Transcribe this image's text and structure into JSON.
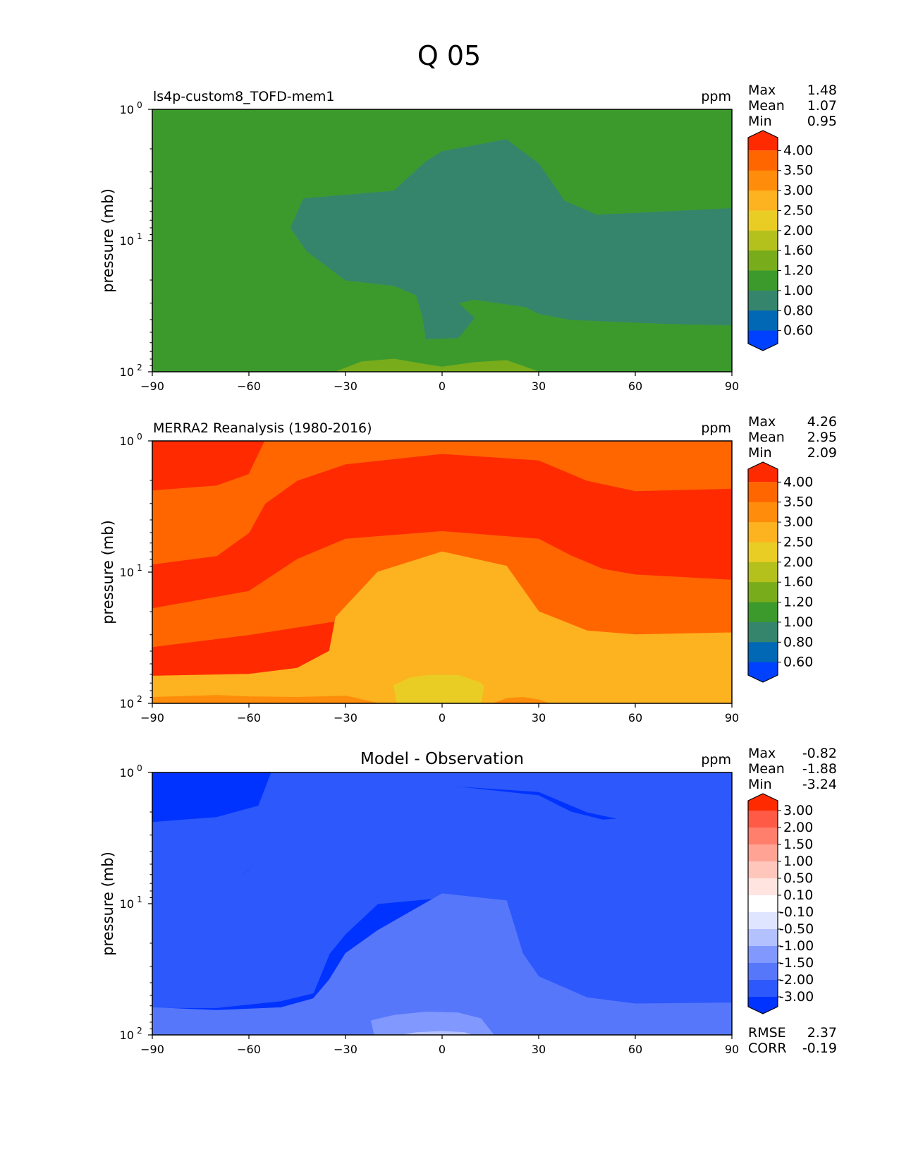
{
  "figure_title": "Q 05",
  "colormaps": {
    "model_obs": {
      "levels": [
        "4.00",
        "3.50",
        "3.00",
        "2.50",
        "2.00",
        "1.60",
        "1.20",
        "1.00",
        "0.80",
        "0.60"
      ],
      "colors": [
        "#ff2a00",
        "#ff6600",
        "#ff8c0a",
        "#fdb21f",
        "#e9cd25",
        "#b4c11c",
        "#78ac1b",
        "#3c9a2d",
        "#35856d",
        "#0068b4",
        "#0040ff"
      ]
    },
    "diff": {
      "levels": [
        "3.00",
        "2.00",
        "1.50",
        "1.00",
        "0.50",
        "0.10",
        "-0.10",
        "-0.50",
        "-1.00",
        "-1.50",
        "-2.00",
        "-3.00"
      ],
      "colors": [
        "#ff2a00",
        "#ff5a45",
        "#ff7e6c",
        "#ffa394",
        "#ffc6bc",
        "#ffe4df",
        "#ffffff",
        "#dfe4ff",
        "#b3c1ff",
        "#8199ff",
        "#5777fb",
        "#2d58fb",
        "#0033ff"
      ]
    }
  },
  "chart_data": [
    {
      "type": "contour",
      "id": "model",
      "left_title": "ls4p-custom8_TOFD-mem1",
      "center_title": "",
      "units": "ppm",
      "ylabel": "pressure (mb)",
      "xlabel": "",
      "xlim": [
        -90,
        90
      ],
      "xticks": [
        "−90",
        "−60",
        "−30",
        "0",
        "30",
        "60",
        "90"
      ],
      "ylim": [
        100,
        1
      ],
      "yscale": "log",
      "yticks": [
        "10",
        "10",
        "10"
      ],
      "ytick_exponents": [
        "0",
        "1",
        "2"
      ],
      "stats": [
        {
          "label": "Max",
          "value": "1.48"
        },
        {
          "label": "Mean",
          "value": "1.07"
        },
        {
          "label": "Min",
          "value": "0.95"
        }
      ],
      "colorbar": "model_obs",
      "background_level_color_index": 7,
      "regions": [
        {
          "color_index": 8,
          "outline": [
            [
              -47,
              8
            ],
            [
              -43,
              4.8
            ],
            [
              -15,
              4.2
            ],
            [
              -5,
              2.5
            ],
            [
              0,
              2.1
            ],
            [
              20,
              1.7
            ],
            [
              30,
              2.6
            ],
            [
              38,
              5.0
            ],
            [
              48,
              6.4
            ],
            [
              90,
              5.7
            ],
            [
              90,
              44
            ],
            [
              70,
              43
            ],
            [
              40,
              40
            ],
            [
              30,
              36
            ],
            [
              26,
              32
            ],
            [
              10,
              28
            ],
            [
              5,
              30
            ],
            [
              10,
              39
            ],
            [
              5,
              55
            ],
            [
              -5,
              56
            ],
            [
              -6,
              38
            ],
            [
              -8,
              26
            ],
            [
              -15,
              22
            ],
            [
              -30,
              20
            ],
            [
              -42,
              12
            ]
          ]
        },
        {
          "color_index": 6,
          "outline": [
            [
              -33,
              100
            ],
            [
              -25,
              84
            ],
            [
              -15,
              80
            ],
            [
              -5,
              88
            ],
            [
              0,
              92
            ],
            [
              10,
              85
            ],
            [
              20,
              82
            ],
            [
              30,
              100
            ]
          ]
        }
      ],
      "rmse": "",
      "corr": ""
    },
    {
      "type": "contour",
      "id": "obs",
      "left_title": "MERRA2 Reanalysis (1980-2016)",
      "center_title": "",
      "units": "ppm",
      "ylabel": "pressure (mb)",
      "xlabel": "",
      "xlim": [
        -90,
        90
      ],
      "xticks": [
        "−90",
        "−60",
        "−30",
        "0",
        "30",
        "60",
        "90"
      ],
      "ylim": [
        100,
        1
      ],
      "yscale": "log",
      "yticks": [
        "10",
        "10",
        "10"
      ],
      "ytick_exponents": [
        "0",
        "1",
        "2"
      ],
      "stats": [
        {
          "label": "Max",
          "value": "4.26"
        },
        {
          "label": "Mean",
          "value": "2.95"
        },
        {
          "label": "Min",
          "value": "2.09"
        }
      ],
      "colorbar": "model_obs",
      "background_level_color_index": 0,
      "regions": [
        {
          "color_index": 1,
          "outline": [
            [
              -90,
              2.4
            ],
            [
              -70,
              2.2
            ],
            [
              -60,
              1.8
            ],
            [
              -55,
              1.0
            ],
            [
              -20,
              1.0
            ],
            [
              -20,
              1.0
            ],
            [
              90,
              1.0
            ],
            [
              90,
              2.3
            ],
            [
              60,
              2.4
            ],
            [
              45,
              2.0
            ],
            [
              30,
              1.4
            ],
            [
              0,
              1.25
            ],
            [
              -30,
              1.5
            ],
            [
              -45,
              2.0
            ],
            [
              -55,
              3.0
            ],
            [
              -60,
              5.0
            ],
            [
              -70,
              7.5
            ],
            [
              -90,
              8.7
            ]
          ]
        },
        {
          "color_index": 1,
          "outline": [
            [
              -90,
              19
            ],
            [
              -60,
              14
            ],
            [
              -45,
              8
            ],
            [
              -30,
              5.6
            ],
            [
              0,
              4.9
            ],
            [
              30,
              5.6
            ],
            [
              40,
              7.5
            ],
            [
              50,
              9.5
            ],
            [
              60,
              10.5
            ],
            [
              90,
              11.5
            ],
            [
              90,
              38
            ],
            [
              60,
              30
            ],
            [
              40,
              30
            ],
            [
              30,
              22
            ],
            [
              -10,
              21
            ],
            [
              -30,
              23
            ],
            [
              -60,
              30
            ],
            [
              -90,
              37
            ]
          ]
        },
        {
          "color_index": 3,
          "outline": [
            [
              -90,
              62
            ],
            [
              -60,
              60
            ],
            [
              -45,
              54
            ],
            [
              -35,
              40
            ],
            [
              -33,
              22
            ],
            [
              -20,
              10
            ],
            [
              0,
              7
            ],
            [
              20,
              9
            ],
            [
              30,
              20
            ],
            [
              45,
              28
            ],
            [
              60,
              30
            ],
            [
              90,
              29
            ],
            [
              90,
              100
            ],
            [
              -90,
              100
            ]
          ]
        },
        {
          "color_index": 2,
          "outline": [
            [
              -90,
              100
            ],
            [
              -90,
              90
            ],
            [
              -70,
              87
            ],
            [
              -60,
              89
            ],
            [
              -45,
              90
            ],
            [
              -30,
              88
            ],
            [
              -28,
              90
            ],
            [
              -20,
              100
            ]
          ]
        },
        {
          "color_index": 2,
          "outline": [
            [
              16,
              100
            ],
            [
              20,
              92
            ],
            [
              25,
              90
            ],
            [
              30,
              94
            ],
            [
              33,
              100
            ]
          ]
        },
        {
          "color_index": 4,
          "outline": [
            [
              -15,
              73
            ],
            [
              -10,
              64
            ],
            [
              -4,
              61
            ],
            [
              5,
              61
            ],
            [
              12,
              70
            ],
            [
              13,
              74
            ],
            [
              12,
              100
            ],
            [
              -14,
              100
            ]
          ]
        }
      ],
      "rmse": "",
      "corr": ""
    },
    {
      "type": "contour",
      "id": "diff",
      "left_title": "",
      "center_title": "Model - Observation",
      "units": "ppm",
      "ylabel": "pressure (mb)",
      "xlabel": "",
      "xlim": [
        -90,
        90
      ],
      "xticks": [
        "−90",
        "−60",
        "−30",
        "0",
        "30",
        "60",
        "90"
      ],
      "ylim": [
        100,
        1
      ],
      "yscale": "log",
      "yticks": [
        "10",
        "10",
        "10"
      ],
      "ytick_exponents": [
        "0",
        "1",
        "2"
      ],
      "stats": [
        {
          "label": "Max",
          "value": "-0.82"
        },
        {
          "label": "Mean",
          "value": "-1.88"
        },
        {
          "label": "Min",
          "value": "-3.24"
        }
      ],
      "colorbar": "diff",
      "background_level_color_index": 12,
      "regions": [
        {
          "color_index": 11,
          "outline": [
            [
              -90,
              2.4
            ],
            [
              -70,
              2.2
            ],
            [
              -57,
              1.8
            ],
            [
              -53,
              1.0
            ],
            [
              90,
              1.0
            ],
            [
              90,
              2.3
            ],
            [
              60,
              2.4
            ],
            [
              45,
              2.0
            ],
            [
              30,
              1.4
            ],
            [
              0,
              1.25
            ],
            [
              -30,
              1.5
            ],
            [
              -45,
              2.0
            ],
            [
              -52,
              3.5
            ],
            [
              -60,
              5.5
            ],
            [
              -70,
              8.0
            ],
            [
              -90,
              10
            ]
          ]
        },
        {
          "color_index": 11,
          "outline": [
            [
              -90,
              10
            ],
            [
              -70,
              8
            ],
            [
              -60,
              5.6
            ],
            [
              -53,
              3.5
            ],
            [
              -50,
              2.0
            ],
            [
              -40,
              1.6
            ],
            [
              -20,
              1.4
            ],
            [
              0,
              1.25
            ],
            [
              30,
              1.5
            ],
            [
              40,
              2.0
            ],
            [
              50,
              2.3
            ],
            [
              90,
              2.0
            ],
            [
              90,
              60
            ],
            [
              60,
              63
            ],
            [
              45,
              57
            ],
            [
              30,
              40
            ],
            [
              25,
              28
            ],
            [
              20,
              15
            ],
            [
              0,
              9
            ],
            [
              -20,
              10
            ],
            [
              -30,
              17
            ],
            [
              -35,
              24
            ],
            [
              -40,
              48
            ],
            [
              -50,
              55
            ],
            [
              -70,
              62
            ],
            [
              -90,
              62
            ]
          ]
        },
        {
          "color_index": 10,
          "outline": [
            [
              -90,
              62
            ],
            [
              -70,
              65
            ],
            [
              -50,
              62
            ],
            [
              -40,
              53
            ],
            [
              -35,
              38
            ],
            [
              -30,
              24
            ],
            [
              -20,
              16
            ],
            [
              0,
              8.4
            ],
            [
              20,
              9.5
            ],
            [
              25,
              24
            ],
            [
              30,
              36
            ],
            [
              45,
              52
            ],
            [
              60,
              58
            ],
            [
              90,
              57
            ],
            [
              90,
              100
            ],
            [
              -90,
              100
            ]
          ]
        },
        {
          "color_index": 9,
          "outline": [
            [
              -21,
              100
            ],
            [
              -22,
              78
            ],
            [
              -15,
              71
            ],
            [
              -5,
              67
            ],
            [
              5,
              68
            ],
            [
              12,
              75
            ],
            [
              16,
              100
            ]
          ]
        },
        {
          "color_index": 8,
          "outline": [
            [
              -12,
              100
            ],
            [
              -8,
              96
            ],
            [
              0,
              94
            ],
            [
              7,
              96
            ],
            [
              9,
              100
            ]
          ]
        }
      ],
      "rmse": "2.37",
      "corr": "-0.19",
      "rmse_label": "RMSE",
      "corr_label": "CORR"
    }
  ]
}
